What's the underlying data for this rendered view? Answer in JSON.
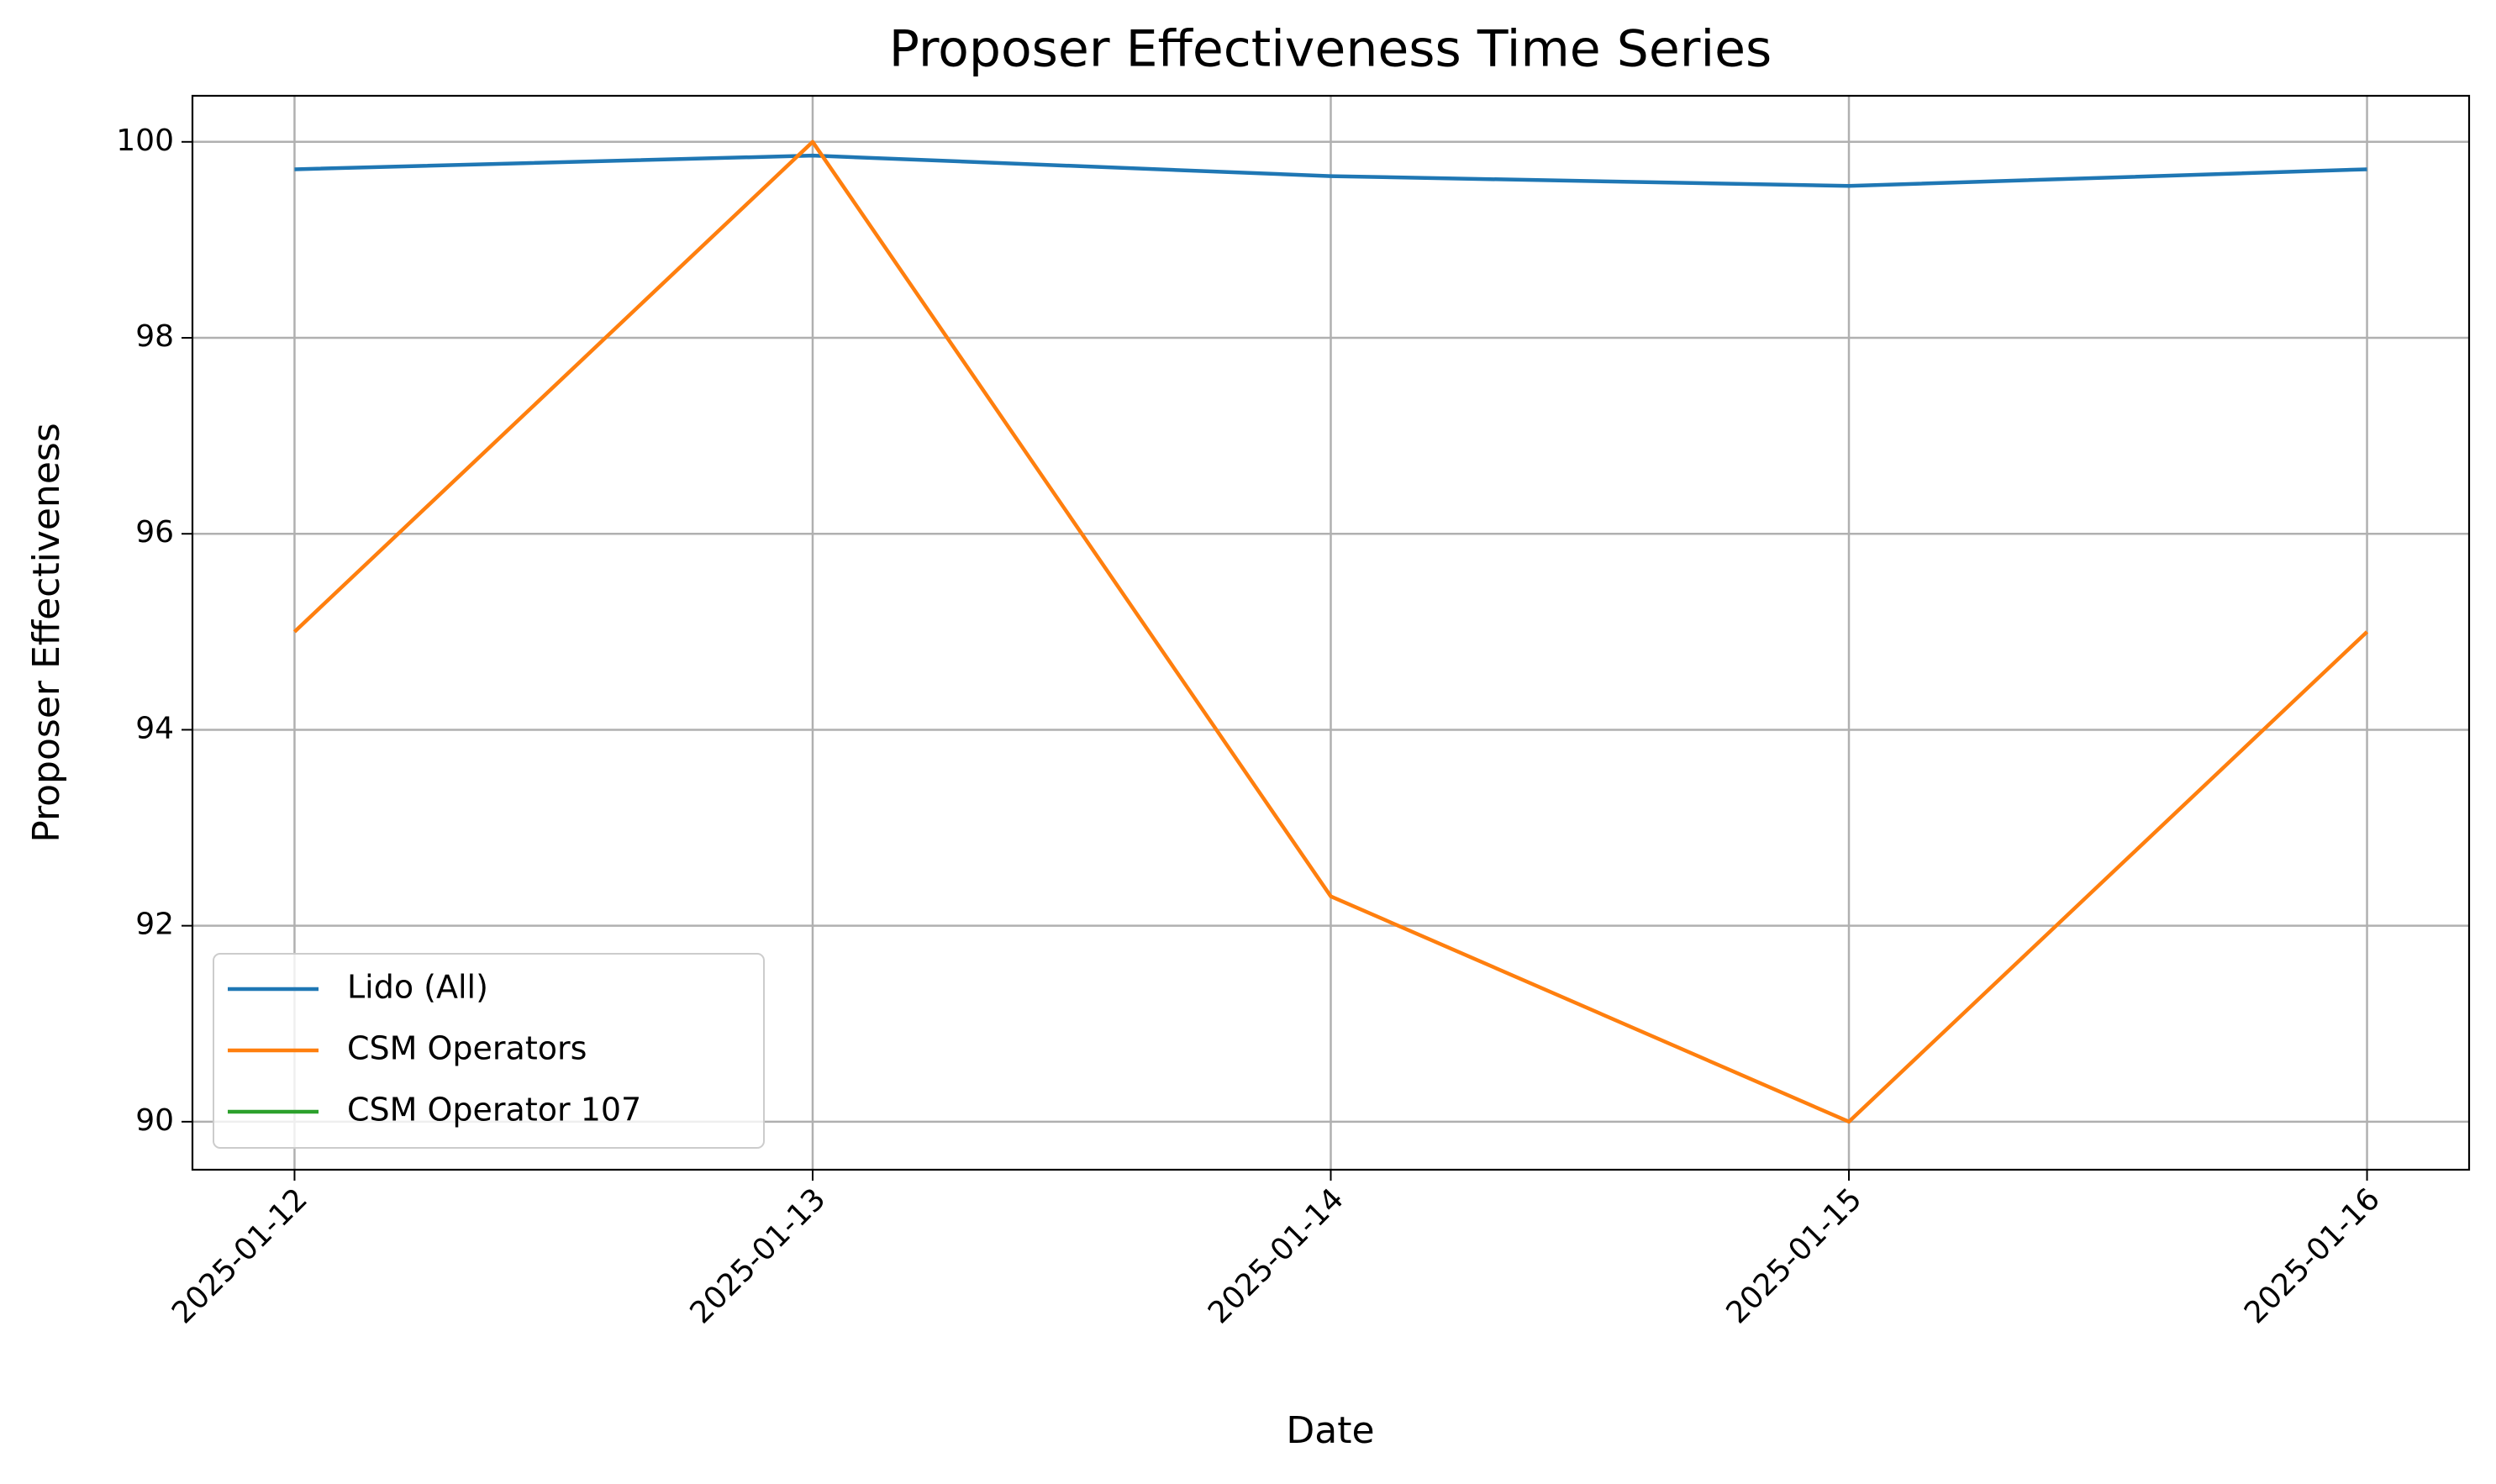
{
  "chart_data": {
    "type": "line",
    "title": "Proposer Effectiveness Time Series",
    "xlabel": "Date",
    "ylabel": "Proposer Effectiveness",
    "x": [
      "2025-01-12",
      "2025-01-13",
      "2025-01-14",
      "2025-01-15",
      "2025-01-16"
    ],
    "series": [
      {
        "name": "Lido (All)",
        "color": "#1f77b4",
        "values": [
          99.72,
          99.86,
          99.65,
          99.55,
          99.72
        ]
      },
      {
        "name": "CSM Operators",
        "color": "#ff7f0e",
        "values": [
          95,
          100,
          92.3,
          90,
          95
        ]
      },
      {
        "name": "CSM Operator 107",
        "color": "#2ca02c",
        "values": [
          null,
          null,
          null,
          null,
          null
        ]
      }
    ],
    "ylim": [
      89.51,
      100.47
    ],
    "yticks": [
      90,
      92,
      94,
      96,
      98,
      100
    ],
    "grid": true,
    "legend": "lower left"
  }
}
